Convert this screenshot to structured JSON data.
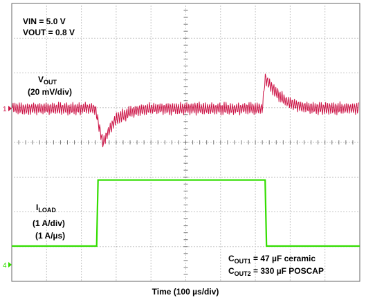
{
  "chart_data": {
    "type": "line",
    "title": "",
    "xlabel": "Time (100 µs/div)",
    "grid": true,
    "divisions": {
      "x": 10,
      "y": 8
    },
    "x_range_us": [
      0,
      1000
    ],
    "annotations": {
      "vin": "VIN = 5.0 V",
      "vout": "VOUT = 0.8 V",
      "vout_label_main": "V",
      "vout_label_sub": "OUT",
      "vout_scale": "(20 mV/div)",
      "iload_label_main": "I",
      "iload_label_sub": "LOAD",
      "iload_scale": "(1 A/div)",
      "iload_slew": "(1 A/µs)",
      "cout1_main": "C",
      "cout1_sub": "OUT1",
      "cout1_rest": " = 47 µF ceramic",
      "cout2_main": "C",
      "cout2_sub": "OUT2",
      "cout2_rest": " = 330 µF POSCAP"
    },
    "series": [
      {
        "name": "VOUT",
        "channel_marker": "1",
        "color": "#cc1144",
        "units": "mV (deviation from 0.8 V)",
        "ripple_mV_pp": 8,
        "x": [
          0,
          240,
          255,
          262,
          275,
          300,
          340,
          400,
          500,
          720,
          728,
          740,
          760,
          790,
          830,
          880,
          940,
          1000
        ],
        "y": [
          0,
          0,
          -14,
          -20,
          -14,
          -6,
          -2,
          0,
          0,
          0,
          18,
          14,
          9,
          4,
          1,
          0,
          0,
          0
        ]
      },
      {
        "name": "ILOAD",
        "channel_marker": "4",
        "color": "#33dd00",
        "units": "A (relative to baseline)",
        "x": [
          0,
          244,
          248,
          728,
          732,
          1000
        ],
        "y": [
          0,
          0,
          1.9,
          1.9,
          0,
          0
        ]
      }
    ]
  }
}
